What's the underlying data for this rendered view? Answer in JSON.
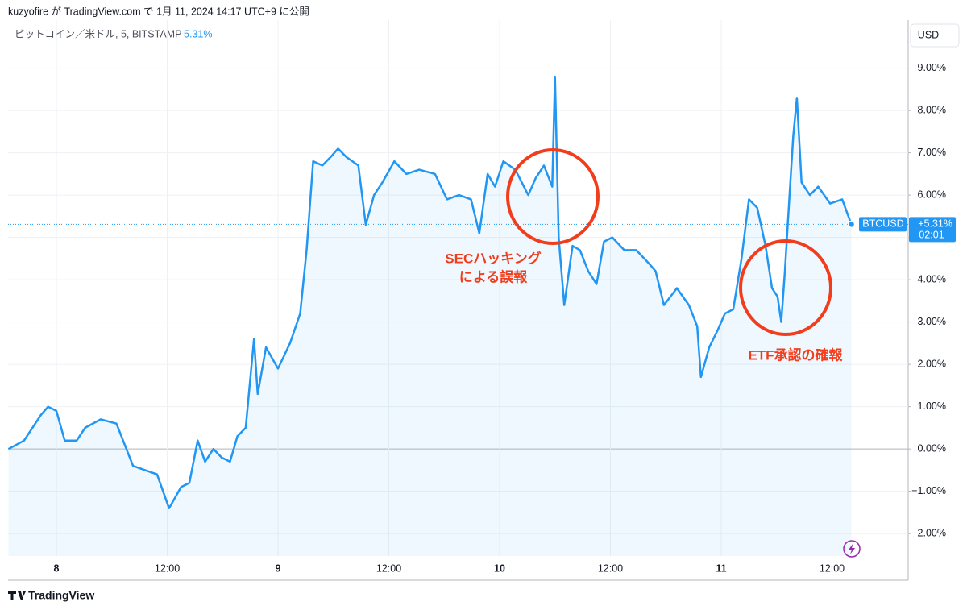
{
  "header": "kuzyofire が TradingView.com で 1月 11, 2024 14:17 UTC+9 に公開",
  "legend": {
    "symbol": "ビットコイン／米ドル, 5, BITSTAMP",
    "last_value_label": "5.31%"
  },
  "currency": "USD",
  "price_label": "+5.31%",
  "countdown": "02:01",
  "brand": "TradingView",
  "chart_data": {
    "type": "line",
    "annotations": [
      "SECハッキング",
      "による誤報",
      "ETF承認の確報"
    ],
    "x": [
      -5.2,
      -3.5,
      -1.7,
      -0.9,
      0,
      0.9,
      2.2,
      3.1,
      4.8,
      6.5,
      7.4,
      8.3,
      9.6,
      10.9,
      12.2,
      13.5,
      14.4,
      15.3,
      16.1,
      17.0,
      17.9,
      18.8,
      19.6,
      20.5,
      21.4,
      21.8,
      22.7,
      24.0,
      25.3,
      26.4,
      27.1,
      27.8,
      28.8,
      29.7,
      30.5,
      31.4,
      32.7,
      33.5,
      34.4,
      35.3,
      36.6,
      37.9,
      39.3,
      41.0,
      42.3,
      43.6,
      44.9,
      45.8,
      46.7,
      47.5,
      48.4,
      49.7,
      51.1,
      51.9,
      52.8,
      53.7,
      54.0,
      54.4,
      55.0,
      55.9,
      56.7,
      57.6,
      58.5,
      59.3,
      60.2,
      61.5,
      62.8,
      64.1,
      64.9,
      65.8,
      67.2,
      68.5,
      69.4,
      69.8,
      70.7,
      71.6,
      72.4,
      73.3,
      74.2,
      75.0,
      75.9,
      76.8,
      77.5,
      78.1,
      78.5,
      78.9,
      79.4,
      79.8,
      80.2,
      80.7,
      81.6,
      82.5,
      83.8,
      85.1,
      86.1
    ],
    "series": [
      {
        "name": "BTCUSD",
        "color": "#2196f3",
        "values": [
          0.0,
          0.2,
          0.8,
          1.0,
          0.9,
          0.2,
          0.2,
          0.5,
          0.7,
          0.6,
          0.1,
          -0.4,
          -0.5,
          -0.6,
          -1.4,
          -0.9,
          -0.8,
          0.2,
          -0.3,
          0.0,
          -0.2,
          -0.3,
          0.3,
          0.5,
          2.6,
          1.3,
          2.4,
          1.9,
          2.5,
          3.2,
          4.7,
          6.8,
          6.7,
          6.9,
          7.1,
          6.9,
          6.7,
          5.3,
          6.0,
          6.3,
          6.8,
          6.5,
          6.6,
          6.5,
          5.9,
          6.0,
          5.9,
          5.1,
          6.5,
          6.2,
          6.8,
          6.6,
          6.0,
          6.4,
          6.7,
          6.2,
          8.8,
          5.0,
          3.4,
          4.8,
          4.7,
          4.2,
          3.9,
          4.9,
          5.0,
          4.7,
          4.7,
          4.4,
          4.2,
          3.4,
          3.8,
          3.4,
          2.9,
          1.7,
          2.4,
          2.8,
          3.2,
          3.3,
          4.5,
          5.9,
          5.7,
          4.8,
          3.8,
          3.6,
          3.0,
          4.2,
          6.0,
          7.4,
          8.3,
          6.3,
          6.0,
          6.2,
          5.8,
          5.9,
          5.31
        ]
      }
    ],
    "last_value": 5.31,
    "xlim": [
      -5.24,
      92.25
    ],
    "xticks": [
      {
        "value": 0,
        "label": "8"
      },
      {
        "value": 12,
        "label": "12:00"
      },
      {
        "value": 24,
        "label": "9"
      },
      {
        "value": 36,
        "label": "12:00"
      },
      {
        "value": 48,
        "label": "10"
      },
      {
        "value": 60,
        "label": "12:00"
      },
      {
        "value": 72,
        "label": "11"
      },
      {
        "value": 84,
        "label": "12:00"
      }
    ],
    "ylim": [
      -2.53,
      10.04
    ],
    "yticks": [
      {
        "value": -2,
        "label": "−2.00%"
      },
      {
        "value": -1,
        "label": "−1.00%"
      },
      {
        "value": 0,
        "label": "0.00%"
      },
      {
        "value": 1,
        "label": "1.00%"
      },
      {
        "value": 2,
        "label": "2.00%"
      },
      {
        "value": 3,
        "label": "3.00%"
      },
      {
        "value": 4,
        "label": "4.00%"
      },
      {
        "value": 5,
        "label": "5.00%"
      },
      {
        "value": 6,
        "label": "6.00%"
      },
      {
        "value": 7,
        "label": "7.00%"
      },
      {
        "value": 8,
        "label": "8.00%"
      },
      {
        "value": 9,
        "label": "9.00%"
      }
    ],
    "grid": true
  }
}
